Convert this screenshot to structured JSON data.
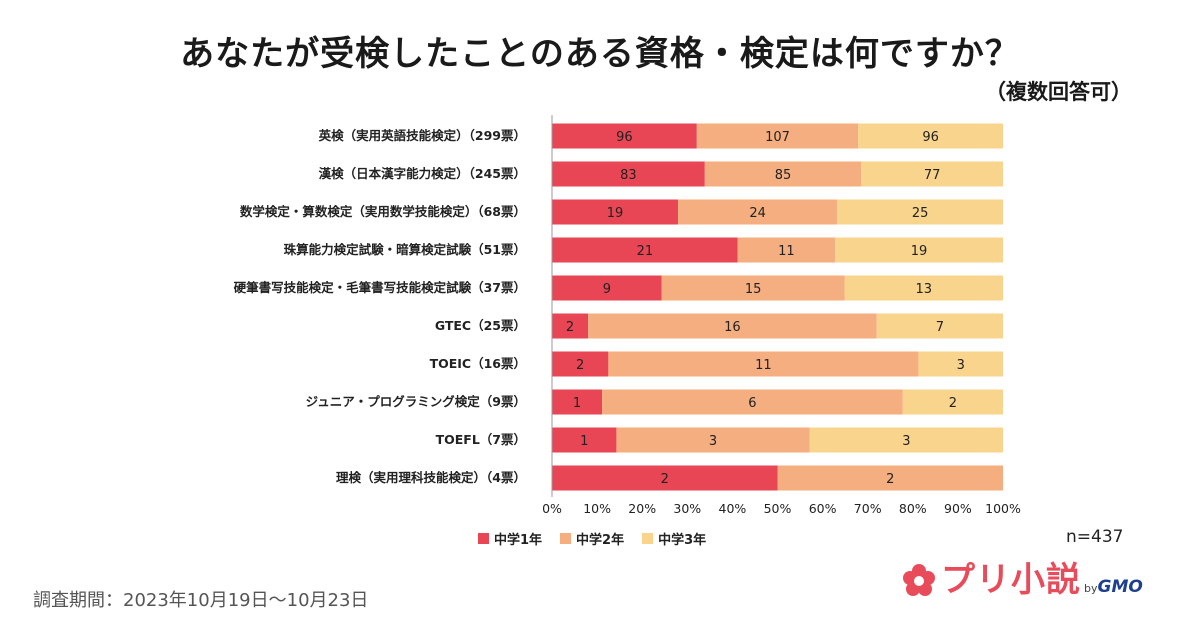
{
  "title": "あなたが受検したことのある資格・検定は何ですか？",
  "subtitle": "（複数回答可）",
  "n_note": "n=437",
  "survey_period": "調査期間：2023年10月19日〜10月23日",
  "logo": {
    "text": "プリ小説",
    "by": "by",
    "brand": "GMO"
  },
  "colors": {
    "grade1": "#e84555",
    "grade2": "#f4ae7f",
    "grade3": "#f9d48d"
  },
  "chart_data": {
    "type": "bar",
    "orientation": "horizontal",
    "stacked": "percent",
    "categories": [
      "英検（実用英語技能検定）（299票）",
      "漢検（日本漢字能力検定）（245票）",
      "数学検定・算数検定（実用数学技能検定）（68票）",
      "珠算能力検定試験・暗算検定試験（51票）",
      "硬筆書写技能検定・毛筆書写技能検定試験（37票）",
      "GTEC（25票）",
      "TOEIC（16票）",
      "ジュニア・プログラミング検定（9票）",
      "TOEFL（7票）",
      "理検（実用理科技能検定）（4票）"
    ],
    "series": [
      {
        "name": "中学1年",
        "values": [
          96,
          83,
          19,
          21,
          9,
          2,
          2,
          1,
          1,
          2
        ]
      },
      {
        "name": "中学2年",
        "values": [
          107,
          85,
          24,
          11,
          15,
          16,
          11,
          6,
          3,
          2
        ]
      },
      {
        "name": "中学3年",
        "values": [
          96,
          77,
          25,
          19,
          13,
          7,
          3,
          2,
          3,
          0
        ]
      }
    ],
    "xlim": [
      0,
      100
    ],
    "xticks": [
      "0%",
      "10%",
      "20%",
      "30%",
      "40%",
      "50%",
      "60%",
      "70%",
      "80%",
      "90%",
      "100%"
    ],
    "legend": "bottom"
  }
}
